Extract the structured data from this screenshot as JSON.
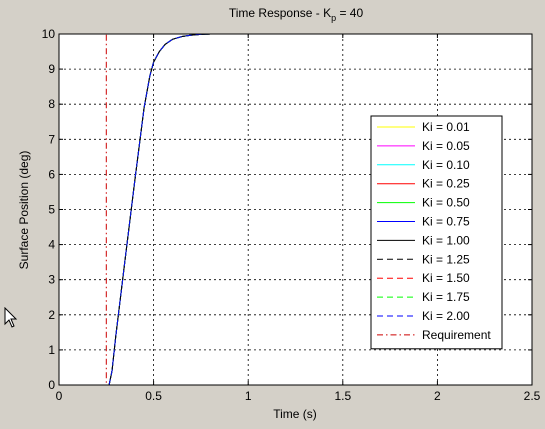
{
  "chart_data": {
    "type": "line",
    "title": "Time Response - K",
    "title_subscript": "p",
    "title_suffix": " = 40",
    "xlabel": "Time (s)",
    "ylabel": "Surface Position (deg)",
    "xlim": [
      0,
      2.5
    ],
    "ylim": [
      0,
      10
    ],
    "xticks": [
      "0",
      "0.5",
      "1",
      "1.5",
      "2",
      "2.5"
    ],
    "yticks": [
      "0",
      "1",
      "2",
      "3",
      "4",
      "5",
      "6",
      "7",
      "8",
      "9",
      "10"
    ],
    "grid": true,
    "legend_position": "right",
    "step_response": {
      "description_free_values": true,
      "x": [
        0,
        0.265,
        0.28,
        0.3,
        0.35,
        0.4,
        0.45,
        0.48,
        0.5,
        0.53,
        0.56,
        0.6,
        0.65,
        0.7,
        0.75,
        0.8,
        1.0,
        1.5,
        2.0,
        2.5
      ],
      "y": [
        0,
        0,
        0.4,
        1.4,
        3.6,
        5.8,
        7.9,
        8.8,
        9.2,
        9.5,
        9.7,
        9.85,
        9.93,
        9.97,
        9.99,
        10,
        10,
        10,
        10,
        10
      ]
    },
    "series": [
      {
        "name": "Ki = 0.01",
        "color": "#ffff00",
        "dash": "solid"
      },
      {
        "name": "Ki = 0.05",
        "color": "#ff00ff",
        "dash": "solid"
      },
      {
        "name": "Ki = 0.10",
        "color": "#00ffff",
        "dash": "solid"
      },
      {
        "name": "Ki = 0.25",
        "color": "#ff0000",
        "dash": "solid"
      },
      {
        "name": "Ki = 0.50",
        "color": "#00ff00",
        "dash": "solid"
      },
      {
        "name": "Ki = 0.75",
        "color": "#0000ff",
        "dash": "solid"
      },
      {
        "name": "Ki = 1.00",
        "color": "#000000",
        "dash": "solid"
      },
      {
        "name": "Ki = 1.25",
        "color": "#000000",
        "dash": "dashed"
      },
      {
        "name": "Ki = 1.50",
        "color": "#ff0000",
        "dash": "dashed"
      },
      {
        "name": "Ki = 1.75",
        "color": "#00ff00",
        "dash": "dashed"
      },
      {
        "name": "Ki = 2.00",
        "color": "#0000ff",
        "dash": "dashed"
      }
    ],
    "requirement": {
      "name": "Requirement",
      "color": "#cc0000",
      "dash": "dashdot",
      "x": [
        0,
        0.25,
        0.25,
        2.5
      ],
      "y": [
        0,
        0,
        10,
        10
      ]
    }
  }
}
